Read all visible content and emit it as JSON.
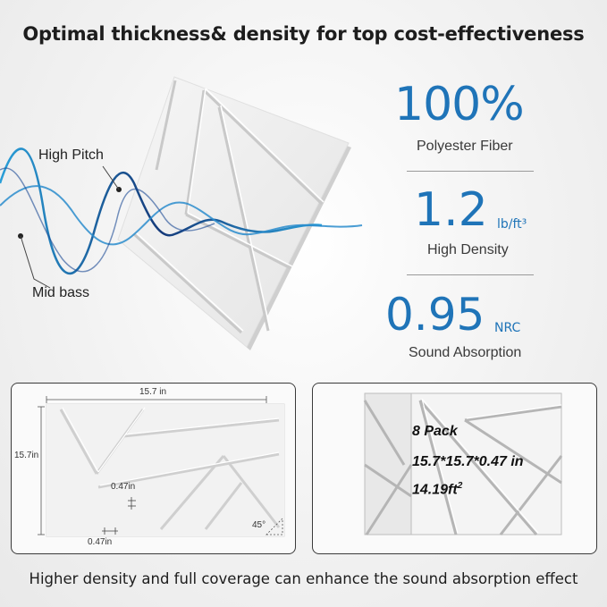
{
  "headline": "Optimal thickness& density for top cost-effectiveness",
  "wave_labels": {
    "high_pitch": "High Pitch",
    "mid_bass": "Mid bass"
  },
  "stats": [
    {
      "value": "100%",
      "unit": "",
      "label": "Polyester Fiber"
    },
    {
      "value": "1.2",
      "unit": "lb/ft³",
      "label": "High Density"
    },
    {
      "value": "0.95",
      "unit": "NRC",
      "label": "Sound Absorption"
    }
  ],
  "dimensions": {
    "width": "15.7 in",
    "height": "15.7in",
    "thickness_mid": "0.47in",
    "thickness_bottom": "0.47in",
    "angle": "45°"
  },
  "pack": {
    "line1": "8 Pack",
    "line2": "15.7*15.7*0.47 in",
    "area_value": "14.19ft",
    "area_sup": "2"
  },
  "footer": "Higher density and full coverage can enhance the sound absorption effect",
  "colors": {
    "accent": "#1f74b8",
    "text": "#1d1d1d",
    "wave_dark": "#153a7a",
    "wave_light": "#2a9fd8"
  }
}
